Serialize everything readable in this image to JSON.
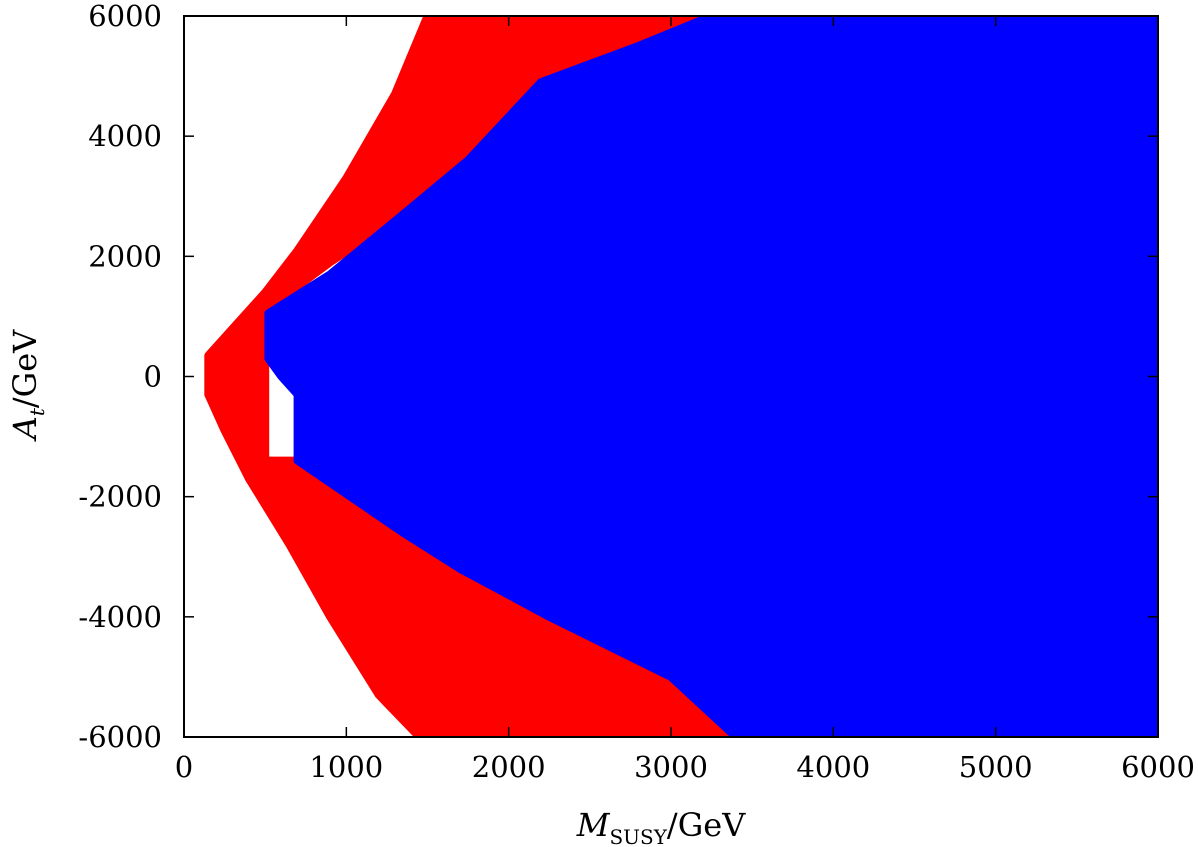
{
  "chart_data": {
    "type": "scatter",
    "title": "",
    "xlabel": {
      "main": "M",
      "sub": "SUSY",
      "unit": "/GeV"
    },
    "ylabel": {
      "main": "A",
      "sub": "t",
      "unit": "/GeV"
    },
    "xlim": [
      0,
      6000
    ],
    "ylim": [
      -6000,
      6000
    ],
    "xticks": [
      0,
      1000,
      2000,
      3000,
      4000,
      5000,
      6000
    ],
    "yticks": [
      -6000,
      -4000,
      -2000,
      0,
      2000,
      4000,
      6000
    ],
    "xtick_labels": [
      "0",
      "1000",
      "2000",
      "3000",
      "4000",
      "5000",
      "6000"
    ],
    "ytick_labels": [
      "-6000",
      "-4000",
      "-2000",
      "0",
      "2000",
      "4000",
      "6000"
    ],
    "grid": false,
    "legend": "none",
    "series": [
      {
        "color": "#ff0000",
        "region_boundary": [
          [
            150,
            -300
          ],
          [
            150,
            350
          ],
          [
            300,
            800
          ],
          [
            500,
            1400
          ],
          [
            700,
            2100
          ],
          [
            1000,
            3300
          ],
          [
            1300,
            4700
          ],
          [
            1500,
            6000
          ],
          [
            3250,
            6000
          ],
          [
            2800,
            5500
          ],
          [
            2200,
            4900
          ],
          [
            1750,
            3600
          ],
          [
            1350,
            2700
          ],
          [
            900,
            1900
          ],
          [
            500,
            1100
          ],
          [
            500,
            -1400
          ],
          [
            700,
            -1400
          ],
          [
            1350,
            -2600
          ],
          [
            1700,
            -3200
          ],
          [
            2250,
            -4000
          ],
          [
            3000,
            -5000
          ],
          [
            3400,
            -6000
          ],
          [
            1450,
            -6000
          ],
          [
            1200,
            -5300
          ],
          [
            900,
            -4000
          ],
          [
            650,
            -2800
          ],
          [
            400,
            -1700
          ],
          [
            250,
            -900
          ]
        ]
      },
      {
        "color": "#0000ff",
        "region_boundary": [
          [
            520,
            1050
          ],
          [
            900,
            1700
          ],
          [
            1350,
            2700
          ],
          [
            1750,
            3600
          ],
          [
            2200,
            4900
          ],
          [
            2800,
            5500
          ],
          [
            3250,
            6000
          ],
          [
            6000,
            6000
          ],
          [
            6000,
            -6000
          ],
          [
            3400,
            -6000
          ],
          [
            3000,
            -5000
          ],
          [
            2250,
            -4000
          ],
          [
            1700,
            -3200
          ],
          [
            1350,
            -2600
          ],
          [
            700,
            -1400
          ],
          [
            700,
            -300
          ],
          [
            600,
            0
          ],
          [
            520,
            300
          ]
        ]
      }
    ]
  }
}
